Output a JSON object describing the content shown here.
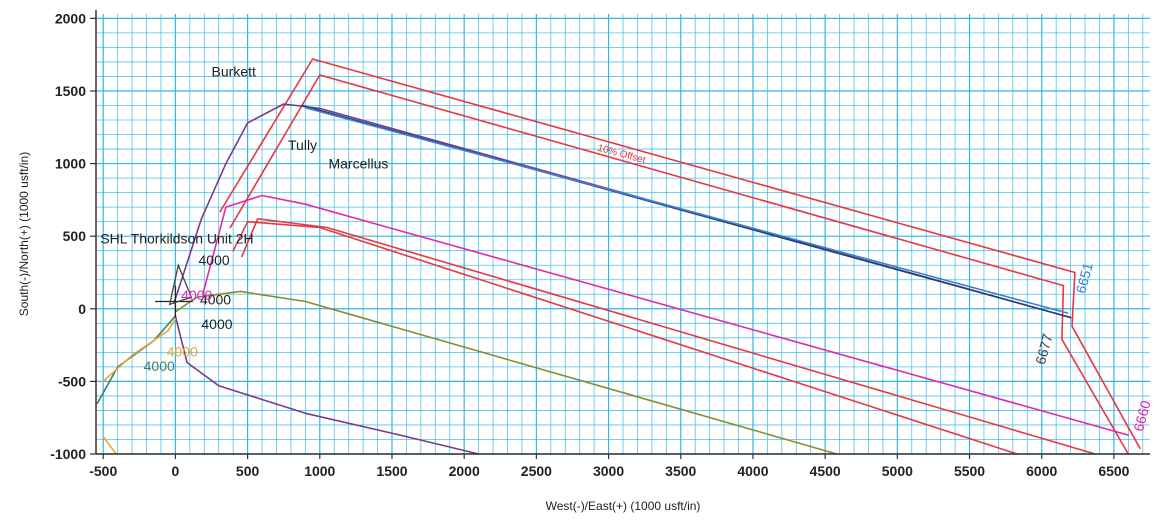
{
  "chart_data": {
    "type": "line",
    "title": "",
    "xlabel": "West(-)/East(+) (1000 usft/in)",
    "ylabel": "South(-)/North(+) (1000 usft/in)",
    "xlim": [
      -550,
      6750
    ],
    "ylim": [
      -1000,
      2030
    ],
    "grid": true,
    "x_ticks": [
      -500,
      0,
      500,
      1000,
      1500,
      2000,
      2500,
      3000,
      3500,
      4000,
      4500,
      5000,
      5500,
      6000,
      6500
    ],
    "y_ticks": [
      -1000,
      -500,
      0,
      500,
      1000,
      1500,
      2000
    ],
    "colors": {
      "grid": "#35b7e6",
      "background": "#ffffff",
      "axis": "#333333",
      "red": "#e8373f",
      "magenta": "#e12aa8",
      "purple": "#7b3a8c",
      "olive": "#8c8c2e",
      "teal": "#3f7f6f",
      "orange": "#e8a53a",
      "navy": "#2a3f6e",
      "blue": "#3a7fd0"
    },
    "series": [
      {
        "color": "red",
        "points": [
          [
            310,
            670
          ],
          [
            950,
            1720
          ],
          [
            6230,
            250
          ],
          [
            6210,
            -120
          ],
          [
            6680,
            -960
          ]
        ]
      },
      {
        "color": "red",
        "points": [
          [
            380,
            560
          ],
          [
            1000,
            1610
          ],
          [
            6150,
            160
          ],
          [
            6140,
            -210
          ],
          [
            6600,
            -1000
          ]
        ]
      },
      {
        "color": "red",
        "points": [
          [
            460,
            360
          ],
          [
            570,
            620
          ],
          [
            1050,
            560
          ],
          [
            6370,
            -1000
          ]
        ]
      },
      {
        "color": "red",
        "points": [
          [
            400,
            400
          ],
          [
            500,
            600
          ],
          [
            1000,
            560
          ],
          [
            5830,
            -1000
          ]
        ]
      },
      {
        "color": "magenta",
        "points": [
          [
            190,
            100
          ],
          [
            350,
            700
          ],
          [
            600,
            780
          ],
          [
            900,
            720
          ],
          [
            6600,
            -870
          ]
        ]
      },
      {
        "color": "purple",
        "points": [
          [
            -10,
            40
          ],
          [
            180,
            620
          ],
          [
            350,
            1000
          ],
          [
            500,
            1280
          ],
          [
            750,
            1410
          ],
          [
            1000,
            1380
          ],
          [
            6200,
            -60
          ]
        ]
      },
      {
        "color": "purple",
        "points": [
          [
            0,
            -50
          ],
          [
            80,
            -370
          ],
          [
            300,
            -530
          ],
          [
            900,
            -720
          ],
          [
            1600,
            -880
          ],
          [
            2100,
            -1000
          ]
        ]
      },
      {
        "color": "navy",
        "points": [
          [
            880,
            1400
          ],
          [
            6200,
            -60
          ]
        ]
      },
      {
        "color": "blue",
        "points": [
          [
            900,
            1385
          ],
          [
            6180,
            -30
          ]
        ]
      },
      {
        "color": "olive",
        "points": [
          [
            0,
            -20
          ],
          [
            150,
            80
          ],
          [
            450,
            120
          ],
          [
            900,
            50
          ],
          [
            4580,
            -1000
          ]
        ]
      },
      {
        "color": "teal",
        "points": [
          [
            -540,
            -650
          ],
          [
            -400,
            -400
          ],
          [
            -150,
            -220
          ],
          [
            0,
            -50
          ]
        ]
      },
      {
        "color": "orange",
        "points": [
          [
            -500,
            -500
          ],
          [
            -300,
            -320
          ],
          [
            -50,
            -150
          ],
          [
            0,
            -70
          ]
        ]
      },
      {
        "color": "orange",
        "points": [
          [
            -500,
            -880
          ],
          [
            -410,
            -1000
          ]
        ]
      }
    ],
    "annotations": [
      {
        "text": "Burkett",
        "x": 250,
        "y": 1600,
        "color": "#222222"
      },
      {
        "text": "Tully",
        "x": 780,
        "y": 1095,
        "color": "#222222"
      },
      {
        "text": "Marcellus",
        "x": 1060,
        "y": 965,
        "color": "#222222"
      },
      {
        "text": "SHL Thorkildson Unit 2H",
        "x": -520,
        "y": 450,
        "color": "#222222"
      },
      {
        "text": "4000",
        "x": 160,
        "y": 300,
        "color": "#222222"
      },
      {
        "text": "4000",
        "x": 170,
        "y": 30,
        "color": "#222222"
      },
      {
        "text": "4000",
        "x": 180,
        "y": -140,
        "color": "#222222"
      },
      {
        "text": "4000",
        "x": -220,
        "y": -430,
        "color": "#3f7f6f"
      },
      {
        "text": "4000",
        "x": -60,
        "y": -330,
        "color": "#e8a53a"
      },
      {
        "text": "4000",
        "x": 40,
        "y": 60,
        "color": "#e12aa8"
      },
      {
        "text": "10% Offset",
        "x": 2920,
        "y": 1090,
        "color": "#e8373f"
      },
      {
        "text": "6651",
        "x": 6300,
        "y": 100,
        "color": "#3a7fd0"
      },
      {
        "text": "6677",
        "x": 6020,
        "y": -390,
        "color": "#444444"
      },
      {
        "text": "6660",
        "x": 6700,
        "y": -850,
        "color": "#e12aa8"
      }
    ]
  }
}
